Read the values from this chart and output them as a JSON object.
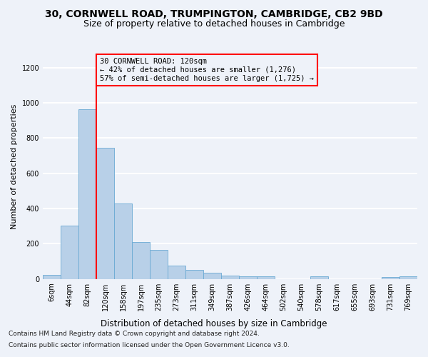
{
  "title1": "30, CORNWELL ROAD, TRUMPINGTON, CAMBRIDGE, CB2 9BD",
  "title2": "Size of property relative to detached houses in Cambridge",
  "xlabel": "Distribution of detached houses by size in Cambridge",
  "ylabel": "Number of detached properties",
  "footnote1": "Contains HM Land Registry data © Crown copyright and database right 2024.",
  "footnote2": "Contains public sector information licensed under the Open Government Licence v3.0.",
  "bin_labels": [
    "6sqm",
    "44sqm",
    "82sqm",
    "120sqm",
    "158sqm",
    "197sqm",
    "235sqm",
    "273sqm",
    "311sqm",
    "349sqm",
    "387sqm",
    "426sqm",
    "464sqm",
    "502sqm",
    "540sqm",
    "578sqm",
    "617sqm",
    "655sqm",
    "693sqm",
    "731sqm",
    "769sqm"
  ],
  "bar_heights": [
    25,
    305,
    965,
    745,
    430,
    210,
    165,
    75,
    50,
    35,
    20,
    15,
    15,
    0,
    0,
    15,
    0,
    0,
    0,
    10,
    15
  ],
  "bar_color": "#b8d0e8",
  "bar_edge_color": "#6aaad4",
  "vline_x": 3,
  "vline_color": "red",
  "annotation_text": "30 CORNWELL ROAD: 120sqm\n← 42% of detached houses are smaller (1,276)\n57% of semi-detached houses are larger (1,725) →",
  "annotation_box_color": "red",
  "ylim": [
    0,
    1280
  ],
  "yticks": [
    0,
    200,
    400,
    600,
    800,
    1000,
    1200
  ],
  "background_color": "#eef2f9",
  "grid_color": "white",
  "title1_fontsize": 10,
  "title2_fontsize": 9,
  "xlabel_fontsize": 8.5,
  "ylabel_fontsize": 8,
  "tick_fontsize": 7,
  "annotation_fontsize": 7.5,
  "footnote_fontsize": 6.5
}
